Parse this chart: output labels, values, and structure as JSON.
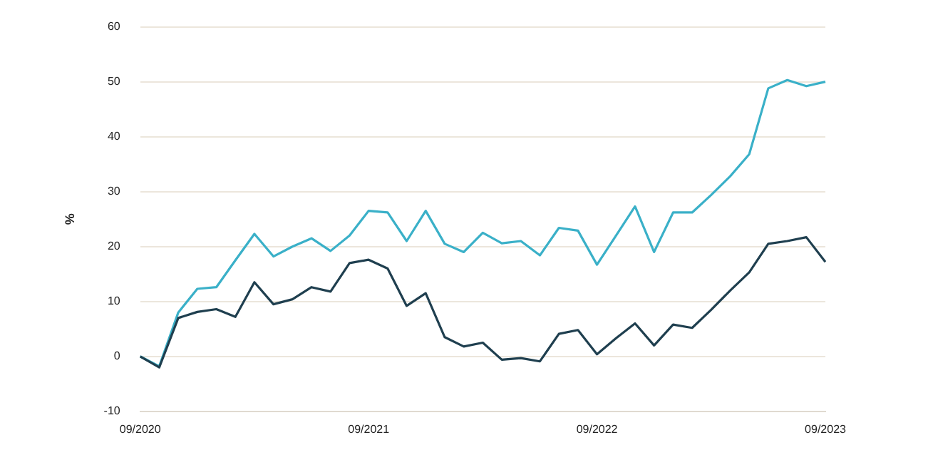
{
  "chart_data": {
    "type": "line",
    "ylabel": "%",
    "categories": [
      "09/2020",
      null,
      null,
      null,
      null,
      null,
      null,
      null,
      null,
      null,
      null,
      null,
      "09/2021",
      null,
      null,
      null,
      null,
      null,
      null,
      null,
      null,
      null,
      null,
      null,
      "09/2022",
      null,
      null,
      null,
      null,
      null,
      null,
      null,
      null,
      null,
      null,
      null,
      "09/2023"
    ],
    "series": [
      {
        "color": "#1f3f4f",
        "values": [
          0,
          -2,
          7,
          8.1,
          8.6,
          7.2,
          13.5,
          9.5,
          10.4,
          12.6,
          11.8,
          17,
          17.6,
          16,
          9.2,
          11.5,
          3.5,
          1.8,
          2.5,
          -0.6,
          -0.3,
          -0.9,
          4.1,
          4.8,
          0.4,
          3.3,
          6,
          2,
          5.8,
          5.2,
          8.5,
          12,
          15.3,
          20.5,
          21,
          21.7,
          17.2
        ]
      },
      {
        "color": "#3ab0c8",
        "values": [
          0,
          -1.8,
          8,
          12.3,
          12.6,
          17.5,
          22.3,
          18.2,
          20,
          21.5,
          19.2,
          22,
          26.5,
          26.2,
          21,
          26.5,
          20.5,
          19,
          22.5,
          20.6,
          21,
          18.4,
          23.4,
          22.9,
          16.7,
          22,
          27.3,
          19,
          26.2,
          26.2,
          29.4,
          32.8,
          36.8,
          48.8,
          50.3,
          49.2,
          50
        ]
      }
    ],
    "ylim": [
      -10,
      60
    ],
    "yticks": [
      -10,
      0,
      10,
      20,
      30,
      40,
      50,
      60
    ],
    "grid": "y",
    "marker": "none",
    "line_style": "solid"
  }
}
